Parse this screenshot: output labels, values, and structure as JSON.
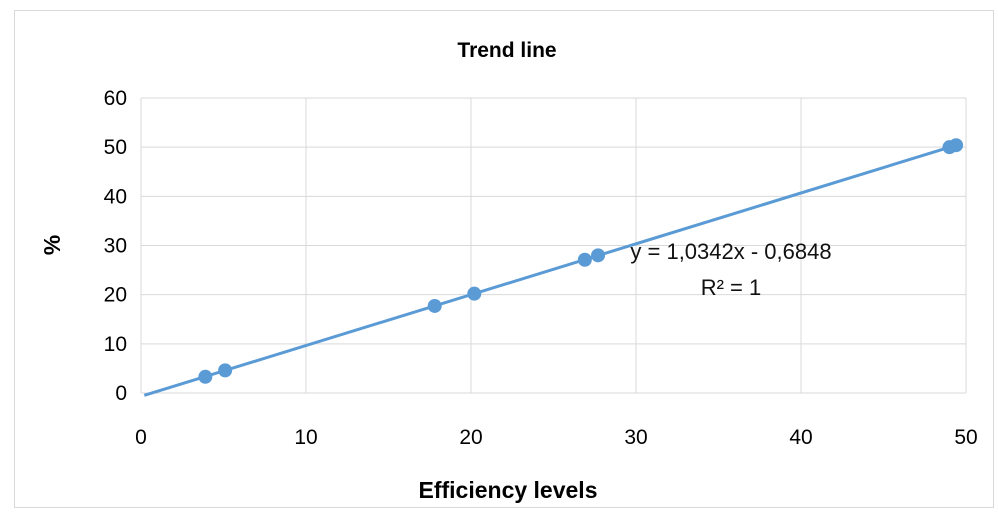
{
  "chart_data": {
    "type": "scatter",
    "title": "Trend line",
    "xlabel": "Efficiency levels",
    "ylabel": "%",
    "xlim": [
      0,
      50
    ],
    "ylim": [
      0,
      60
    ],
    "x_ticks": [
      "0",
      "10",
      "20",
      "30",
      "40",
      "50"
    ],
    "y_ticks": [
      "0",
      "10",
      "20",
      "30",
      "40",
      "50",
      "60"
    ],
    "grid": true,
    "legend": "none",
    "series": [
      {
        "x": [
          3.9,
          5.1,
          17.8,
          20.2,
          26.9,
          27.7,
          49.0,
          49.4
        ],
        "y": [
          3.3,
          4.6,
          17.7,
          20.2,
          27.1,
          28.0,
          50.0,
          50.4
        ],
        "color": "#5b9bd5"
      }
    ],
    "trendline": {
      "slope": 1.0342,
      "intercept": -0.6848,
      "x_range": [
        0.2,
        49.6
      ],
      "color": "#5b9bd5"
    },
    "annotations": [
      "y = 1,0342x - 0,6848",
      "R² = 1"
    ]
  }
}
